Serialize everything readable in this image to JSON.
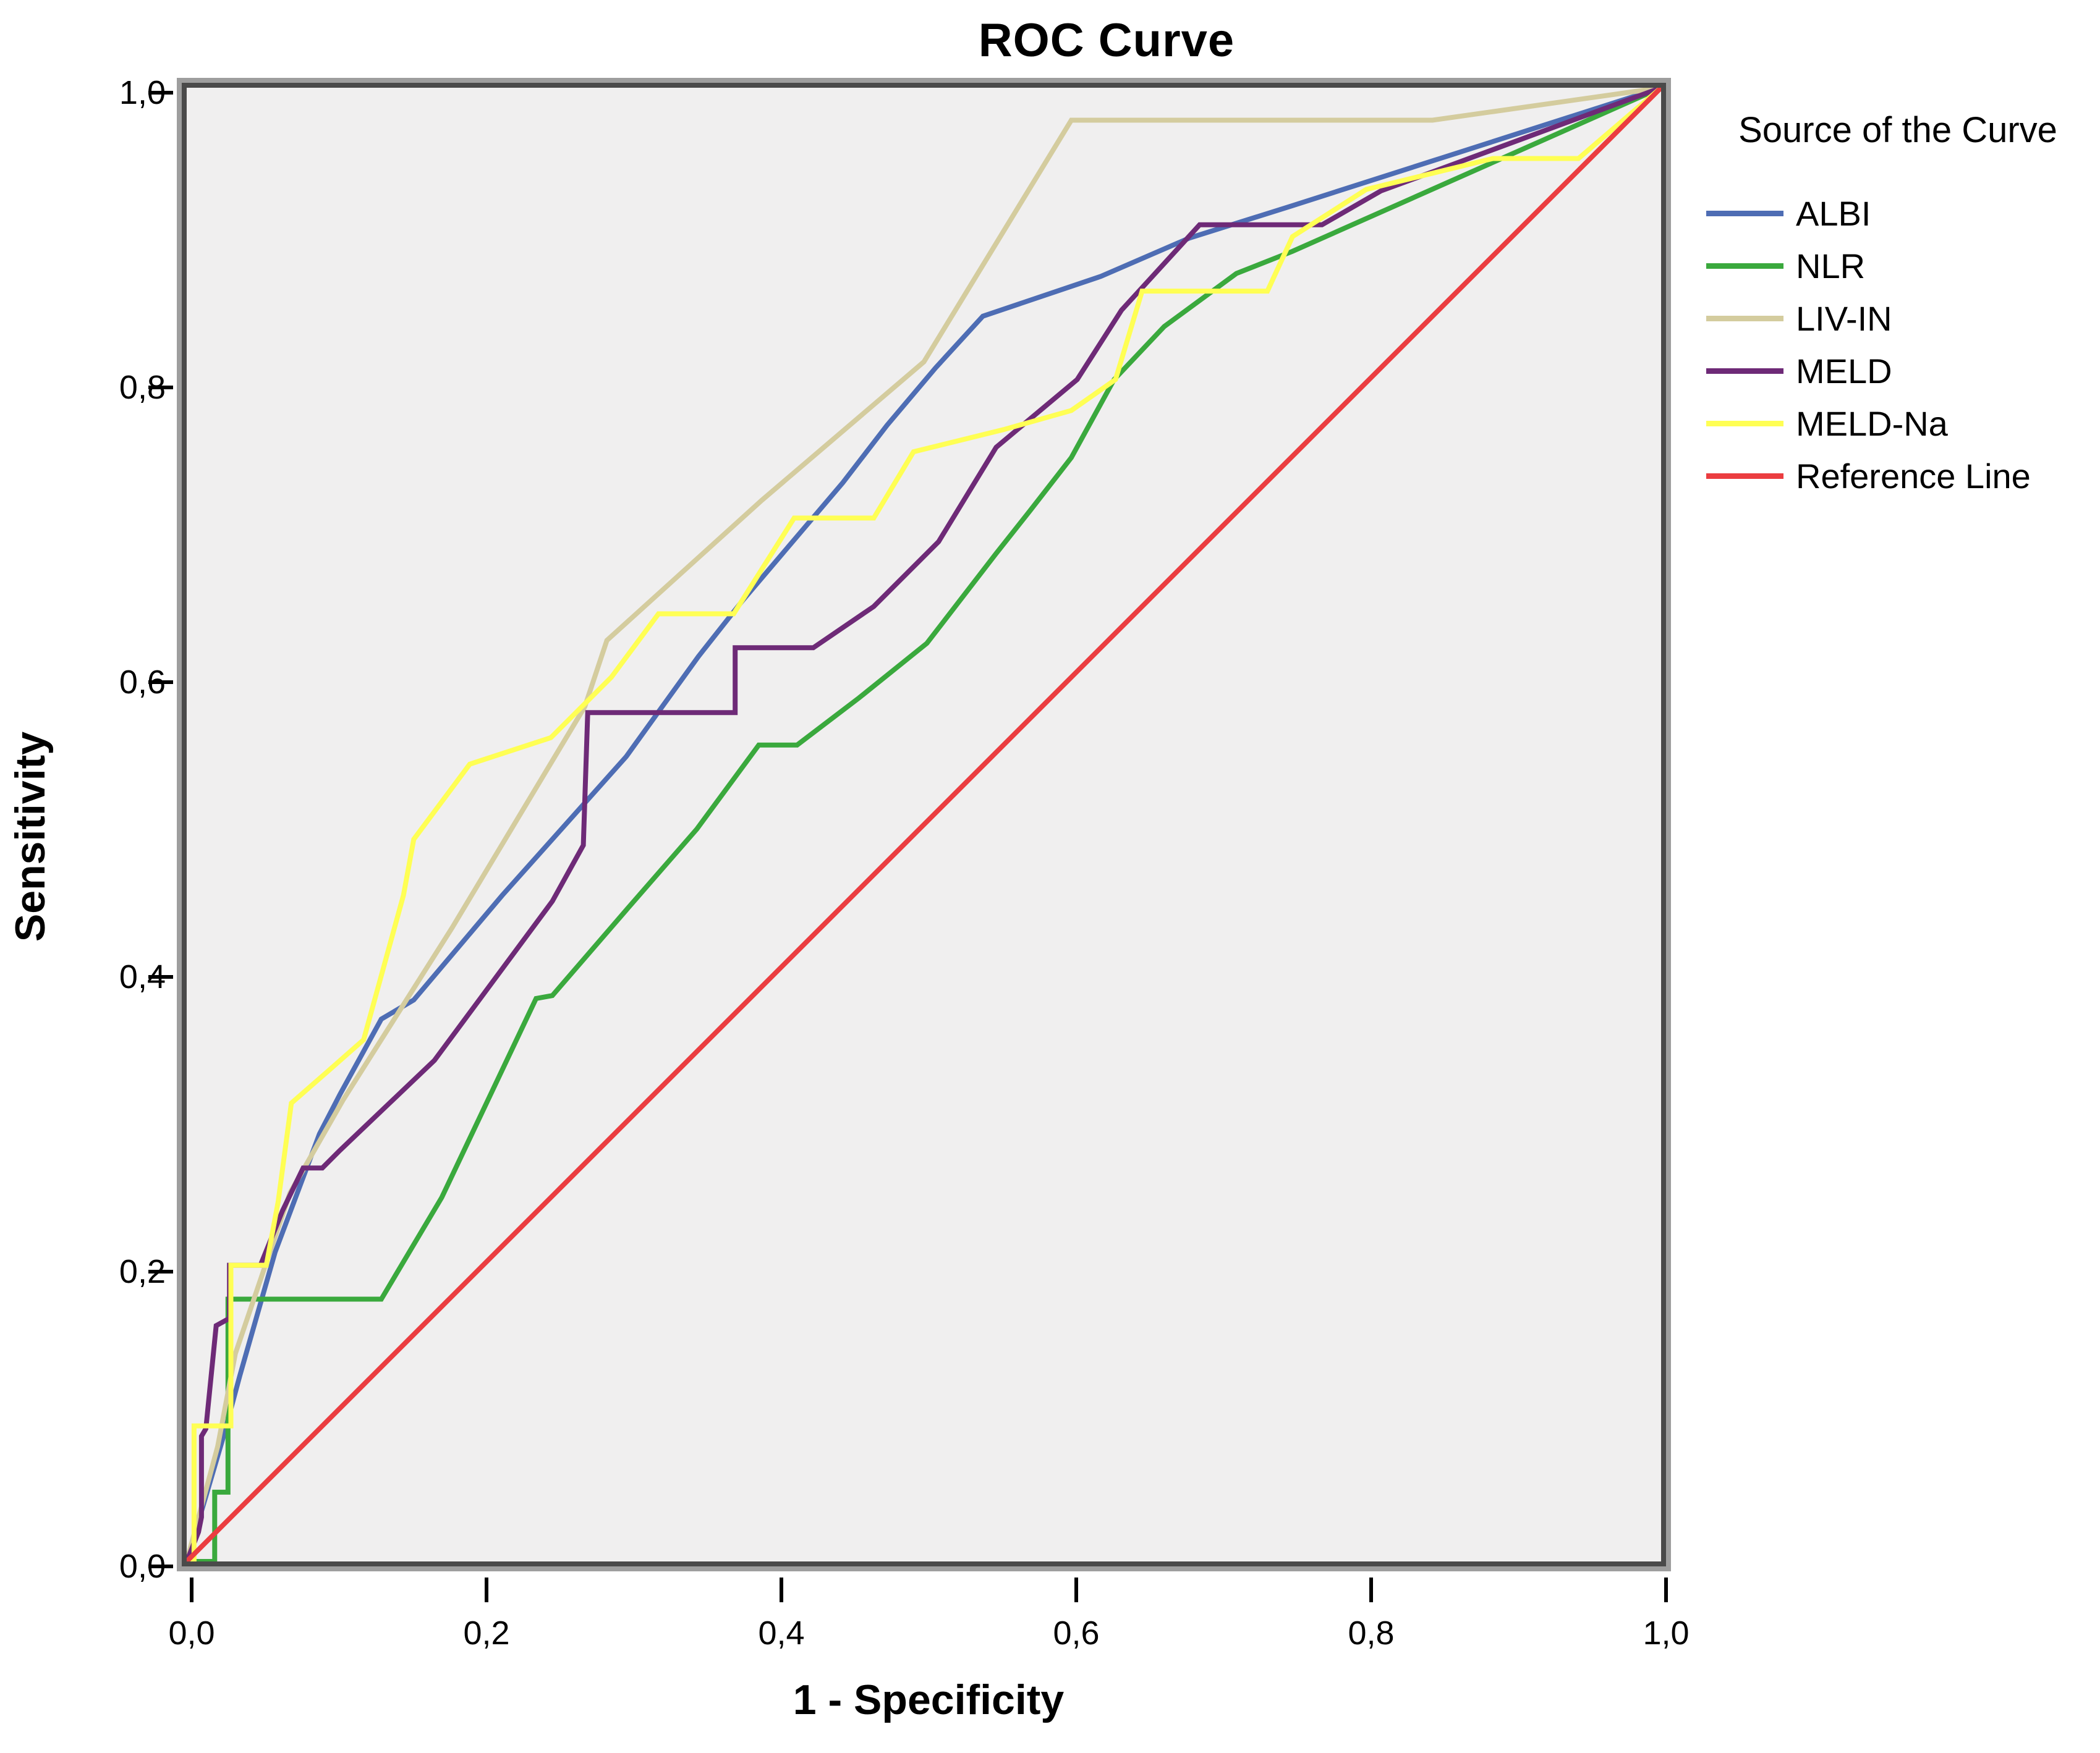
{
  "title": "ROC Curve",
  "axes": {
    "x_label": "1 - Specificity",
    "y_label": "Sensitivity",
    "x_ticks": [
      "0,0",
      "0,2",
      "0,4",
      "0,6",
      "0,8",
      "1,0"
    ],
    "y_ticks": [
      "0,0",
      "0,2",
      "0,4",
      "0,6",
      "0,8",
      "1,0"
    ]
  },
  "legend": {
    "title": "Source of the Curve",
    "position": "right"
  },
  "chart_data": {
    "type": "line",
    "title": "ROC Curve",
    "xlabel": "1 - Specificity",
    "ylabel": "Sensitivity",
    "xlim": [
      0,
      1
    ],
    "ylim": [
      0,
      1
    ],
    "x_tick_labels": [
      "0,0",
      "0,2",
      "0,4",
      "0,6",
      "0,8",
      "1,0"
    ],
    "y_tick_labels": [
      "0,0",
      "0,2",
      "0,4",
      "0,6",
      "0,8",
      "1,0"
    ],
    "decimal_separator": ",",
    "grid": false,
    "plot_background": "#f0efef",
    "legend_title": "Source of the Curve",
    "legend_position": "right",
    "series": [
      {
        "name": "ALBI",
        "color": "#4e6db4",
        "points": [
          [
            0,
            0
          ],
          [
            0.025,
            0.085
          ],
          [
            0.036,
            0.126
          ],
          [
            0.06,
            0.21
          ],
          [
            0.09,
            0.29
          ],
          [
            0.104,
            0.317
          ],
          [
            0.132,
            0.368
          ],
          [
            0.154,
            0.381
          ],
          [
            0.214,
            0.452
          ],
          [
            0.298,
            0.546
          ],
          [
            0.347,
            0.614
          ],
          [
            0.377,
            0.652
          ],
          [
            0.445,
            0.732
          ],
          [
            0.475,
            0.771
          ],
          [
            0.508,
            0.81
          ],
          [
            0.54,
            0.845
          ],
          [
            0.62,
            0.872
          ],
          [
            0.68,
            0.898
          ],
          [
            0.75,
            0.92
          ],
          [
            0.85,
            0.952
          ],
          [
            1,
            1
          ]
        ]
      },
      {
        "name": "NLR",
        "color": "#3aa93d",
        "points": [
          [
            0,
            0
          ],
          [
            0.019,
            0
          ],
          [
            0.019,
            0.047
          ],
          [
            0.028,
            0.047
          ],
          [
            0.028,
            0.178
          ],
          [
            0.132,
            0.178
          ],
          [
            0.173,
            0.247
          ],
          [
            0.237,
            0.382
          ],
          [
            0.248,
            0.384
          ],
          [
            0.299,
            0.443
          ],
          [
            0.346,
            0.497
          ],
          [
            0.388,
            0.554
          ],
          [
            0.414,
            0.554
          ],
          [
            0.456,
            0.586
          ],
          [
            0.502,
            0.623
          ],
          [
            0.549,
            0.684
          ],
          [
            0.572,
            0.713
          ],
          [
            0.6,
            0.749
          ],
          [
            0.629,
            0.802
          ],
          [
            0.663,
            0.838
          ],
          [
            0.712,
            0.874
          ],
          [
            0.75,
            0.889
          ],
          [
            1,
            1
          ]
        ]
      },
      {
        "name": "LIV-IN",
        "color": "#d4cc9e",
        "points": [
          [
            0,
            0
          ],
          [
            0.021,
            0.078
          ],
          [
            0.033,
            0.141
          ],
          [
            0.07,
            0.25
          ],
          [
            0.106,
            0.313
          ],
          [
            0.18,
            0.43
          ],
          [
            0.27,
            0.58
          ],
          [
            0.285,
            0.625
          ],
          [
            0.39,
            0.72
          ],
          [
            0.5,
            0.814
          ],
          [
            0.6,
            0.978
          ],
          [
            0.845,
            0.978
          ],
          [
            1,
            1
          ]
        ]
      },
      {
        "name": "MELD",
        "color": "#6e2a77",
        "points": [
          [
            0,
            0
          ],
          [
            0.008,
            0.02
          ],
          [
            0.01,
            0.03
          ],
          [
            0.01,
            0.085
          ],
          [
            0.013,
            0.09
          ],
          [
            0.02,
            0.16
          ],
          [
            0.029,
            0.165
          ],
          [
            0.029,
            0.201
          ],
          [
            0.05,
            0.201
          ],
          [
            0.065,
            0.238
          ],
          [
            0.079,
            0.267
          ],
          [
            0.092,
            0.267
          ],
          [
            0.104,
            0.279
          ],
          [
            0.168,
            0.34
          ],
          [
            0.248,
            0.448
          ],
          [
            0.269,
            0.486
          ],
          [
            0.272,
            0.576
          ],
          [
            0.372,
            0.576
          ],
          [
            0.372,
            0.62
          ],
          [
            0.425,
            0.62
          ],
          [
            0.466,
            0.648
          ],
          [
            0.51,
            0.692
          ],
          [
            0.549,
            0.756
          ],
          [
            0.604,
            0.802
          ],
          [
            0.634,
            0.849
          ],
          [
            0.687,
            0.907
          ],
          [
            0.77,
            0.907
          ],
          [
            0.81,
            0.93
          ],
          [
            1,
            1
          ]
        ]
      },
      {
        "name": "MELD-Na",
        "color": "#ffff54",
        "points": [
          [
            0,
            0
          ],
          [
            0.005,
            0
          ],
          [
            0.005,
            0.092
          ],
          [
            0.03,
            0.092
          ],
          [
            0.03,
            0.201
          ],
          [
            0.054,
            0.201
          ],
          [
            0.062,
            0.244
          ],
          [
            0.071,
            0.311
          ],
          [
            0.095,
            0.332
          ],
          [
            0.12,
            0.354
          ],
          [
            0.147,
            0.452
          ],
          [
            0.154,
            0.49
          ],
          [
            0.192,
            0.541
          ],
          [
            0.247,
            0.559
          ],
          [
            0.288,
            0.6
          ],
          [
            0.32,
            0.643
          ],
          [
            0.371,
            0.643
          ],
          [
            0.412,
            0.708
          ],
          [
            0.466,
            0.708
          ],
          [
            0.493,
            0.753
          ],
          [
            0.554,
            0.768
          ],
          [
            0.6,
            0.781
          ],
          [
            0.63,
            0.802
          ],
          [
            0.648,
            0.862
          ],
          [
            0.733,
            0.862
          ],
          [
            0.75,
            0.899
          ],
          [
            0.8,
            0.931
          ],
          [
            0.886,
            0.952
          ],
          [
            0.944,
            0.952
          ],
          [
            1,
            1
          ]
        ]
      },
      {
        "name": "Reference Line",
        "color": "#eb3d40",
        "points": [
          [
            0,
            0
          ],
          [
            1,
            1
          ]
        ]
      }
    ]
  }
}
